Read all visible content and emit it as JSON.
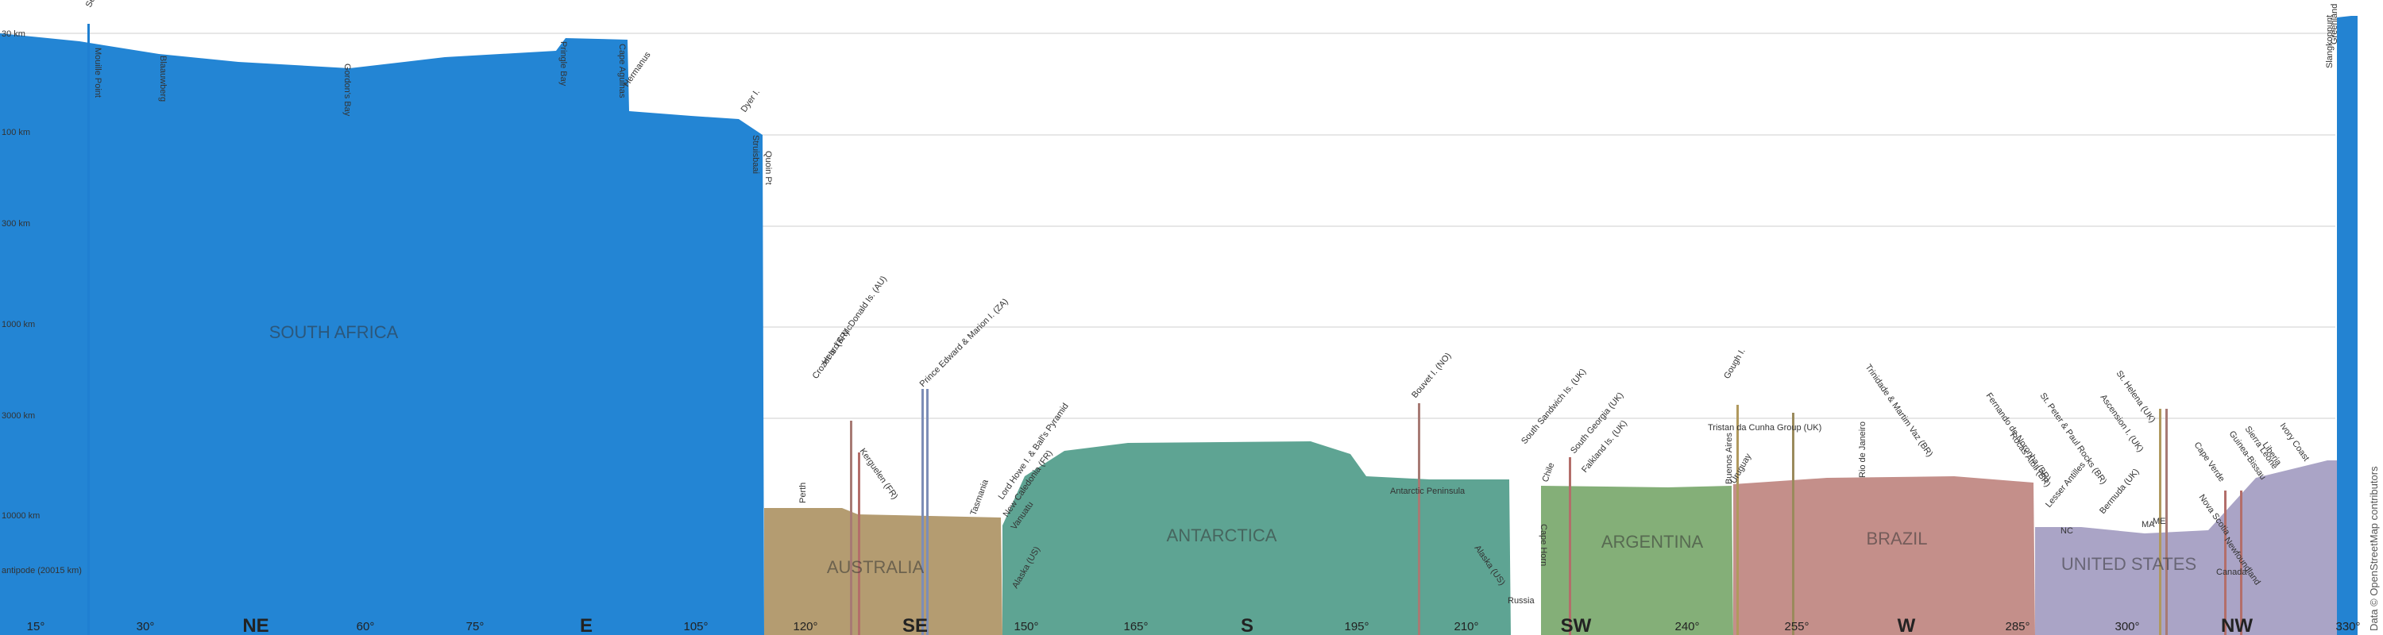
{
  "credit": "Data © OpenStreetMap contributors",
  "distance_labels": [
    "30 km",
    "100 km",
    "300 km",
    "1000 km",
    "3000 km",
    "10000 km",
    "antipode (20015 km)"
  ],
  "bottom_ticks": {
    "degrees": [
      "15°",
      "30°",
      "60°",
      "75°",
      "105°",
      "120°",
      "150°",
      "165°",
      "195°",
      "210°",
      "240°",
      "255°",
      "285°",
      "300°",
      "330°"
    ],
    "cardinals": [
      "NE",
      "E",
      "SE",
      "S",
      "SW",
      "W",
      "NW"
    ]
  },
  "regions": [
    {
      "name": "SOUTH AFRICA",
      "color": "#1f7fd1"
    },
    {
      "name": "AUSTRALIA",
      "color": "#b39b6f"
    },
    {
      "name": "ANTARCTICA",
      "color": "#5a9e8f"
    },
    {
      "name": "ARGENTINA",
      "color": "#7faa76"
    },
    {
      "name": "BRAZIL",
      "color": "#c08a86"
    },
    {
      "name": "UNITED STATES",
      "color": "#a9a2c4"
    }
  ],
  "place_labels": [
    "Seal I.",
    "Mouille Point",
    "Blaauwberg",
    "Gordon's Bay",
    "Pringle Bay",
    "Cape Agulhas",
    "Hermanus",
    "Dyer I.",
    "Quoin Pt",
    "Struisbaai",
    "Perth",
    "Crozet Is. (FR)",
    "Heard & McDonald Is. (AU)",
    "Kerguelen (FR)",
    "Prince Edward & Marion I. (ZA)",
    "Tasmania",
    "Lord Howe I. & Ball's Pyramid",
    "New Caledonia (FR)",
    "Vanuatu",
    "Alaska (US)",
    "Bouvet I. (NO)",
    "Antarctic Peninsula",
    "South Sandwich Is. (UK)",
    "South Georgia (UK)",
    "Falkland Is. (UK)",
    "Chile",
    "Cape Horn",
    "Alaska (US)",
    "Russia",
    "Gough I.",
    "Tristan da Cunha Group (UK)",
    "Buenos Aires",
    "Uruguay",
    "Rio de Janeiro",
    "Trinidade & Martim Vaz (BR)",
    "Fernando de Noronha (BR)",
    "St. Peter & Paul Rocks (BR)",
    "Rocas Atoll (BR)",
    "Lesser Antilles",
    "Bermuda (UK)",
    "NC",
    "ME",
    "MA",
    "Nova Scotia",
    "Newfoundland",
    "Canada",
    "Ascension I. (UK)",
    "St. Helena (UK)",
    "Cape Verde",
    "Guinea-Bissau",
    "Sierra Leone",
    "Liberia",
    "Ivory Coast",
    "Greenland",
    "Slangkoppunt"
  ]
}
